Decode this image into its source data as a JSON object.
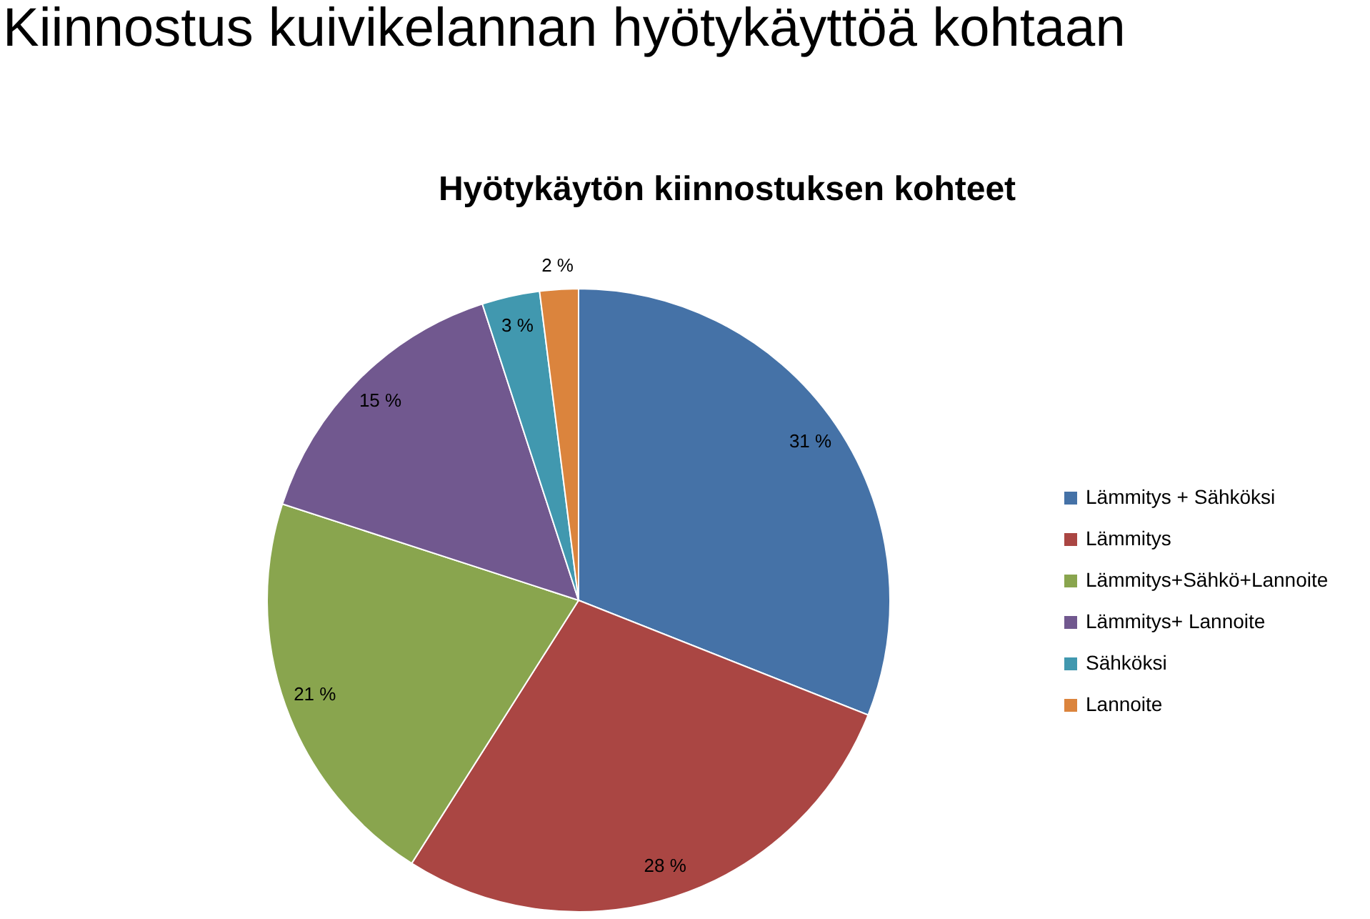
{
  "chart_data": {
    "type": "pie",
    "title": "Kiinnostus kuivikelannan hyötykäyttöä kohtaan",
    "subtitle": "Hyötykäytön kiinnostuksen kohteet",
    "categories": [
      "Lämmitys + Sähköksi",
      "Lämmitys",
      "Lämmitys+Sähkö+Lannoite",
      "Lämmitys+ Lannoite",
      "Sähköksi",
      "Lannoite"
    ],
    "values": [
      31,
      28,
      21,
      15,
      3,
      2
    ],
    "colors": [
      "#4572a7",
      "#aa4643",
      "#89a54e",
      "#71588f",
      "#4198af",
      "#db843d"
    ],
    "value_labels": [
      "31 %",
      "28 %",
      "21 %",
      "15 %",
      "3 %",
      "2 %"
    ],
    "legend": "right"
  }
}
